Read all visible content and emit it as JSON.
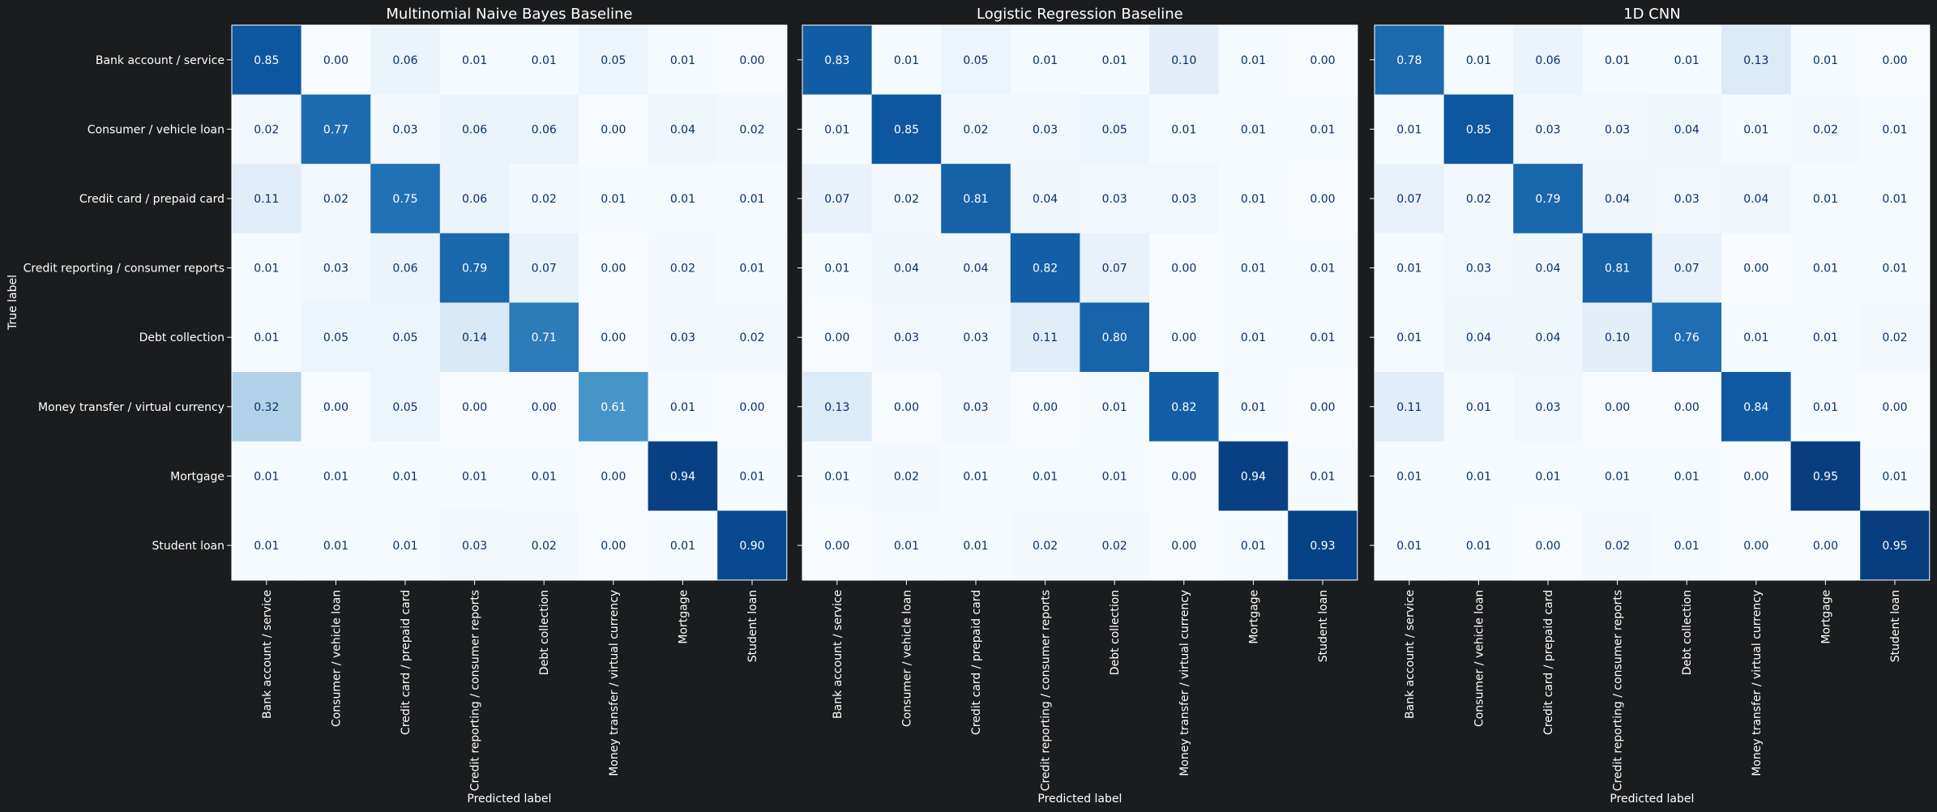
{
  "chart_data": {
    "type": "heatmap",
    "ylabel": "True label",
    "xlabel": "Predicted label",
    "labels": [
      "Bank account / service",
      "Consumer / vehicle loan",
      "Credit card / prepaid card",
      "Credit reporting / consumer reports",
      "Debt collection",
      "Money transfer / virtual currency",
      "Mortgage",
      "Student loan"
    ],
    "value_range": [
      0,
      1
    ],
    "colormap": "Blues",
    "panels": [
      {
        "title": "Multinomial Naive Bayes Baseline",
        "matrix": [
          [
            0.85,
            0.0,
            0.06,
            0.01,
            0.01,
            0.05,
            0.01,
            0.0
          ],
          [
            0.02,
            0.77,
            0.03,
            0.06,
            0.06,
            0.0,
            0.04,
            0.02
          ],
          [
            0.11,
            0.02,
            0.75,
            0.06,
            0.02,
            0.01,
            0.01,
            0.01
          ],
          [
            0.01,
            0.03,
            0.06,
            0.79,
            0.07,
            0.0,
            0.02,
            0.01
          ],
          [
            0.01,
            0.05,
            0.05,
            0.14,
            0.71,
            0.0,
            0.03,
            0.02
          ],
          [
            0.32,
            0.0,
            0.05,
            0.0,
            0.0,
            0.61,
            0.01,
            0.0
          ],
          [
            0.01,
            0.01,
            0.01,
            0.01,
            0.01,
            0.0,
            0.94,
            0.01
          ],
          [
            0.01,
            0.01,
            0.01,
            0.03,
            0.02,
            0.0,
            0.01,
            0.9
          ]
        ]
      },
      {
        "title": "Logistic Regression Baseline",
        "matrix": [
          [
            0.83,
            0.01,
            0.05,
            0.01,
            0.01,
            0.1,
            0.01,
            0.0
          ],
          [
            0.01,
            0.85,
            0.02,
            0.03,
            0.05,
            0.01,
            0.01,
            0.01
          ],
          [
            0.07,
            0.02,
            0.81,
            0.04,
            0.03,
            0.03,
            0.01,
            0.0
          ],
          [
            0.01,
            0.04,
            0.04,
            0.82,
            0.07,
            0.0,
            0.01,
            0.01
          ],
          [
            0.0,
            0.03,
            0.03,
            0.11,
            0.8,
            0.0,
            0.01,
            0.01
          ],
          [
            0.13,
            0.0,
            0.03,
            0.0,
            0.01,
            0.82,
            0.01,
            0.0
          ],
          [
            0.01,
            0.02,
            0.01,
            0.01,
            0.01,
            0.0,
            0.94,
            0.01
          ],
          [
            0.0,
            0.01,
            0.01,
            0.02,
            0.02,
            0.0,
            0.01,
            0.93
          ]
        ]
      },
      {
        "title": "1D CNN",
        "matrix": [
          [
            0.78,
            0.01,
            0.06,
            0.01,
            0.01,
            0.13,
            0.01,
            0.0
          ],
          [
            0.01,
            0.85,
            0.03,
            0.03,
            0.04,
            0.01,
            0.02,
            0.01
          ],
          [
            0.07,
            0.02,
            0.79,
            0.04,
            0.03,
            0.04,
            0.01,
            0.01
          ],
          [
            0.01,
            0.03,
            0.04,
            0.81,
            0.07,
            0.0,
            0.01,
            0.01
          ],
          [
            0.01,
            0.04,
            0.04,
            0.1,
            0.76,
            0.01,
            0.01,
            0.02
          ],
          [
            0.11,
            0.01,
            0.03,
            0.0,
            0.0,
            0.84,
            0.01,
            0.0
          ],
          [
            0.01,
            0.01,
            0.01,
            0.01,
            0.01,
            0.0,
            0.95,
            0.01
          ],
          [
            0.01,
            0.01,
            0.0,
            0.02,
            0.01,
            0.0,
            0.0,
            0.95
          ]
        ]
      }
    ]
  }
}
